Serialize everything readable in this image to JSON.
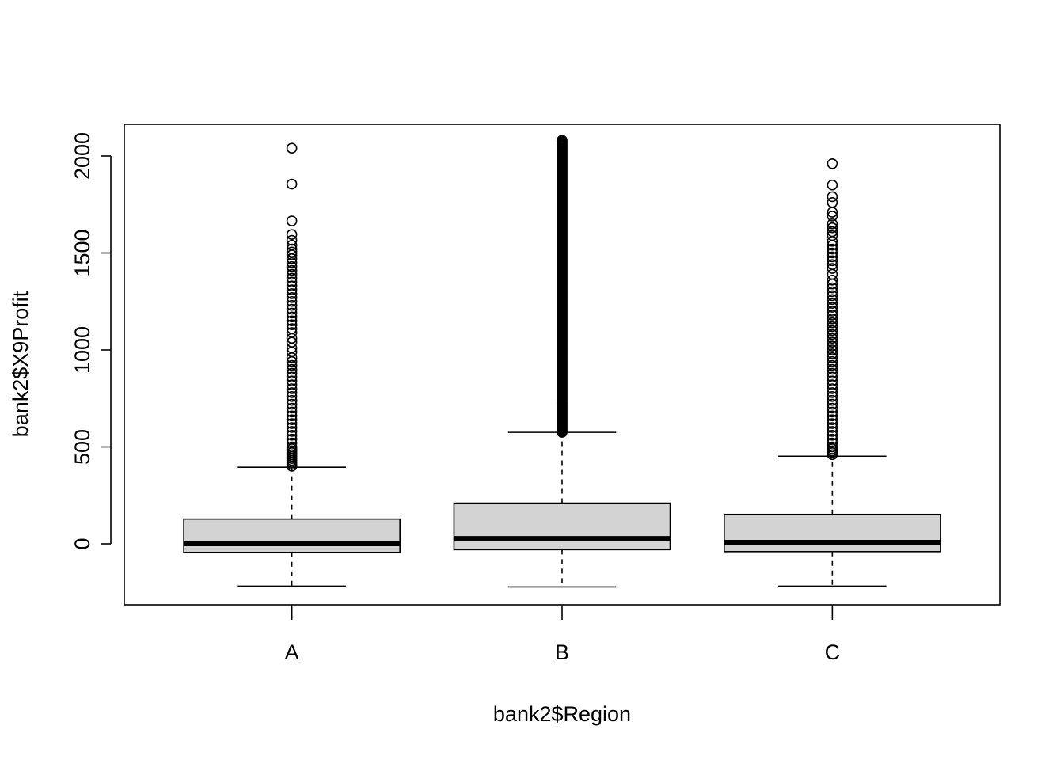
{
  "chart_data": {
    "type": "boxplot",
    "title": "",
    "xlabel": "bank2$Region",
    "ylabel": "bank2$X9Profit",
    "categories": [
      "A",
      "B",
      "C"
    ],
    "ylim": [
      -230,
      2160
    ],
    "yticks": [
      0,
      500,
      1000,
      1500,
      2000
    ],
    "grid": false,
    "legend": "none",
    "box_fill": "#d3d3d3",
    "series": [
      {
        "name": "A",
        "whisker_low": -218,
        "q1": -44,
        "median": 0,
        "q3": 128,
        "whisker_high": 395,
        "outliers": [
          2040,
          1855,
          1665,
          1595,
          1565,
          1540,
          1520,
          1505,
          1490,
          1470,
          1450,
          1430,
          1410,
          1390,
          1370,
          1350,
          1330,
          1310,
          1290,
          1270,
          1250,
          1230,
          1210,
          1190,
          1170,
          1150,
          1130,
          1110,
          1090,
          1060,
          1040,
          1010,
          990,
          960,
          940,
          920,
          900,
          880,
          860,
          840,
          820,
          800,
          780,
          760,
          740,
          720,
          700,
          680,
          660,
          640,
          620,
          600,
          580,
          560,
          540,
          520,
          500,
          490,
          480,
          470,
          460,
          450,
          440,
          430,
          420,
          410,
          400
        ]
      },
      {
        "name": "B",
        "whisker_low": -222,
        "q1": -30,
        "median": 28,
        "q3": 210,
        "whisker_high": 575,
        "outlier_range": [
          575,
          2085
        ]
      },
      {
        "name": "C",
        "whisker_low": -218,
        "q1": -40,
        "median": 8,
        "q3": 152,
        "whisker_high": 452,
        "outliers": [
          1960,
          1850,
          1790,
          1760,
          1710,
          1690,
          1650,
          1630,
          1610,
          1590,
          1560,
          1540,
          1520,
          1500,
          1480,
          1460,
          1440,
          1420,
          1390,
          1360,
          1340,
          1320,
          1300,
          1280,
          1260,
          1240,
          1220,
          1200,
          1180,
          1160,
          1140,
          1120,
          1100,
          1080,
          1060,
          1040,
          1020,
          1000,
          980,
          960,
          940,
          920,
          900,
          880,
          860,
          840,
          820,
          800,
          780,
          760,
          740,
          720,
          700,
          680,
          660,
          640,
          620,
          600,
          580,
          560,
          540,
          520,
          500,
          490,
          480,
          470,
          460
        ]
      }
    ]
  }
}
